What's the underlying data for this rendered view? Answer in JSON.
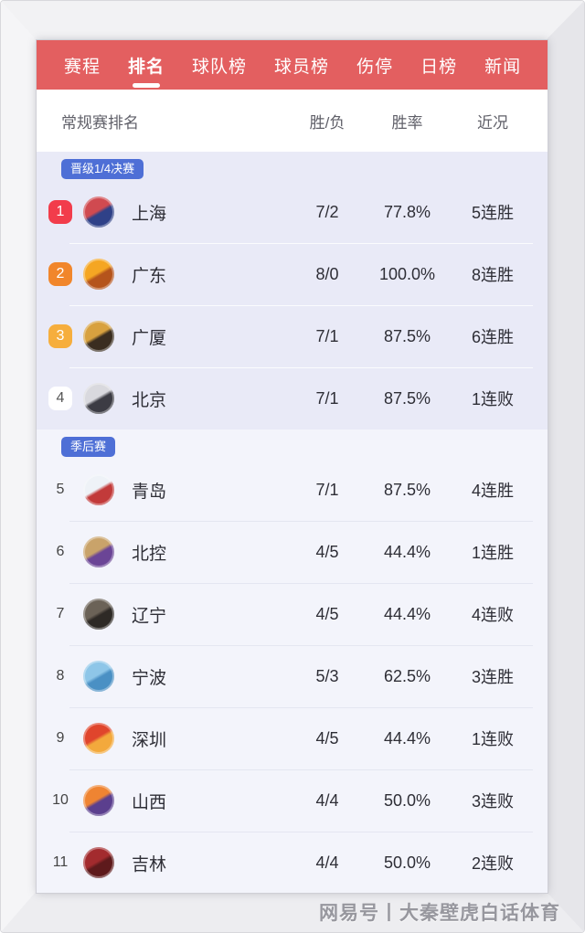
{
  "nav": {
    "bar_color": "#e35f60",
    "tabs": [
      {
        "label": "赛程",
        "active": false
      },
      {
        "label": "排名",
        "active": true
      },
      {
        "label": "球队榜",
        "active": false
      },
      {
        "label": "球员榜",
        "active": false
      },
      {
        "label": "伤停",
        "active": false
      },
      {
        "label": "日榜",
        "active": false
      },
      {
        "label": "新闻",
        "active": false
      }
    ]
  },
  "table_header": {
    "title": "常规赛排名",
    "col_win_loss": "胜/负",
    "col_win_pct": "胜率",
    "col_recent": "近况"
  },
  "sections": [
    {
      "badge": "晋级1/4决赛",
      "badge_color": "#4e6fd6",
      "bg": "#e9eaf7",
      "divider": "rgba(255,255,255,0.8)",
      "teams": [
        {
          "rank": "1",
          "rank_badge_bg": "#f23c4b",
          "rank_badge_fg": "#ffffff",
          "name": "上海",
          "logo": "shanghai-sharks-logo",
          "logo_c1": "#d04a50",
          "logo_c2": "#2f4188",
          "win_loss": "7/2",
          "win_pct": "77.8%",
          "streak": "5连胜"
        },
        {
          "rank": "2",
          "rank_badge_bg": "#f1862b",
          "rank_badge_fg": "#ffffff",
          "name": "广东",
          "logo": "guangdong-tigers-logo",
          "logo_c1": "#f5a623",
          "logo_c2": "#b5541c",
          "win_loss": "8/0",
          "win_pct": "100.0%",
          "streak": "8连胜"
        },
        {
          "rank": "3",
          "rank_badge_bg": "#f6ae3d",
          "rank_badge_fg": "#ffffff",
          "name": "广厦",
          "logo": "guangsha-lions-logo",
          "logo_c1": "#d8a13f",
          "logo_c2": "#3a2d20",
          "win_loss": "7/1",
          "win_pct": "87.5%",
          "streak": "6连胜"
        },
        {
          "rank": "4",
          "rank_badge_bg": "#ffffff",
          "rank_badge_fg": "#555555",
          "name": "北京",
          "logo": "beijing-ducks-logo",
          "logo_c1": "#d9d9de",
          "logo_c2": "#3c3c44",
          "win_loss": "7/1",
          "win_pct": "87.5%",
          "streak": "1连败"
        }
      ]
    },
    {
      "badge": "季后赛",
      "badge_color": "#4e6fd6",
      "bg": "#f3f4fb",
      "divider": "#e4e6f1",
      "teams": [
        {
          "rank": "5",
          "rank_badge_bg": null,
          "rank_badge_fg": "#444444",
          "name": "青岛",
          "logo": "qingdao-eagles-logo",
          "logo_c1": "#eef2f7",
          "logo_c2": "#c23a3a",
          "win_loss": "7/1",
          "win_pct": "87.5%",
          "streak": "4连胜"
        },
        {
          "rank": "6",
          "rank_badge_bg": null,
          "rank_badge_fg": "#444444",
          "name": "北控",
          "logo": "beikong-royal-fighters-logo",
          "logo_c1": "#c9a36a",
          "logo_c2": "#6b4596",
          "win_loss": "4/5",
          "win_pct": "44.4%",
          "streak": "1连胜"
        },
        {
          "rank": "7",
          "rank_badge_bg": null,
          "rank_badge_fg": "#444444",
          "name": "辽宁",
          "logo": "liaoning-flying-leopards-logo",
          "logo_c1": "#6b6257",
          "logo_c2": "#2e2a26",
          "win_loss": "4/5",
          "win_pct": "44.4%",
          "streak": "4连败"
        },
        {
          "rank": "8",
          "rank_badge_bg": null,
          "rank_badge_fg": "#444444",
          "name": "宁波",
          "logo": "ningbo-rockets-logo",
          "logo_c1": "#8ec6e8",
          "logo_c2": "#4a90c4",
          "win_loss": "5/3",
          "win_pct": "62.5%",
          "streak": "3连胜"
        },
        {
          "rank": "9",
          "rank_badge_bg": null,
          "rank_badge_fg": "#444444",
          "name": "深圳",
          "logo": "shenzhen-aviators-logo",
          "logo_c1": "#e0452c",
          "logo_c2": "#f3a93c",
          "win_loss": "4/5",
          "win_pct": "44.4%",
          "streak": "1连败"
        },
        {
          "rank": "10",
          "rank_badge_bg": null,
          "rank_badge_fg": "#444444",
          "name": "山西",
          "logo": "shanxi-loongs-logo",
          "logo_c1": "#ef8432",
          "logo_c2": "#5b3f8e",
          "win_loss": "4/4",
          "win_pct": "50.0%",
          "streak": "3连败"
        },
        {
          "rank": "11",
          "rank_badge_bg": null,
          "rank_badge_fg": "#444444",
          "name": "吉林",
          "logo": "jilin-tigers-logo",
          "logo_c1": "#a32b2e",
          "logo_c2": "#5e1a1c",
          "win_loss": "4/4",
          "win_pct": "50.0%",
          "streak": "2连败"
        }
      ]
    }
  ],
  "watermark": {
    "text": "网易号丨大秦壁虎白话体育"
  }
}
